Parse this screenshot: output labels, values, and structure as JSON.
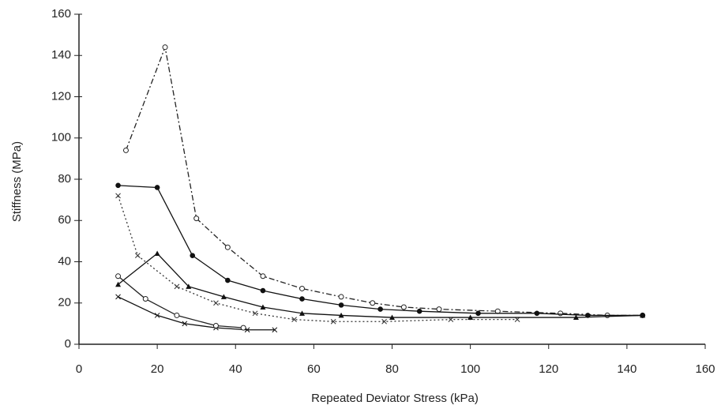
{
  "chart_data": {
    "type": "line",
    "xlabel": "Repeated Deviator Stress (kPa)",
    "ylabel": "Stiffness (MPa)",
    "xlim": [
      0,
      160
    ],
    "xticks": [
      0,
      20,
      40,
      60,
      80,
      100,
      120,
      140,
      160
    ],
    "ylim": [
      0,
      160
    ],
    "yticks": [
      0,
      20,
      40,
      60,
      80,
      100,
      120,
      140,
      160
    ],
    "series": [
      {
        "color": "#222222",
        "line_style": "dashdot",
        "marker": "circle",
        "x": [
          12,
          22,
          30,
          38,
          47,
          57,
          67,
          75,
          83,
          92,
          107,
          123,
          135,
          144
        ],
        "values": [
          94,
          144,
          61,
          47,
          33,
          27,
          23,
          20,
          18,
          17,
          16,
          15,
          14,
          14
        ]
      },
      {
        "color": "#111111",
        "line_style": "solid",
        "marker": "dot",
        "x": [
          10,
          20,
          29,
          38,
          47,
          57,
          67,
          77,
          87,
          102,
          117,
          130,
          144
        ],
        "values": [
          77,
          76,
          43,
          31,
          26,
          22,
          19,
          17,
          16,
          15,
          15,
          14,
          14
        ]
      },
      {
        "color": "#333333",
        "line_style": "dotted",
        "marker": "cross",
        "x": [
          10,
          15,
          25,
          35,
          45,
          55,
          65,
          78,
          95,
          112
        ],
        "values": [
          72,
          43,
          28,
          20,
          15,
          12,
          11,
          11,
          12,
          12
        ]
      },
      {
        "color": "#111111",
        "line_style": "solid",
        "marker": "triangle",
        "x": [
          10,
          20,
          28,
          37,
          47,
          57,
          67,
          80,
          100,
          127,
          144
        ],
        "values": [
          29,
          44,
          28,
          23,
          18,
          15,
          14,
          13,
          13,
          13,
          14
        ]
      },
      {
        "color": "#111111",
        "line_style": "solid",
        "marker": "cross",
        "x": [
          10,
          20,
          27,
          35,
          43,
          50
        ],
        "values": [
          23,
          14,
          10,
          8,
          7,
          7
        ]
      },
      {
        "color": "#222222",
        "line_style": "solid",
        "marker": "circle",
        "x": [
          10,
          17,
          25,
          35,
          42
        ],
        "values": [
          33,
          22,
          14,
          9,
          8
        ]
      }
    ]
  }
}
